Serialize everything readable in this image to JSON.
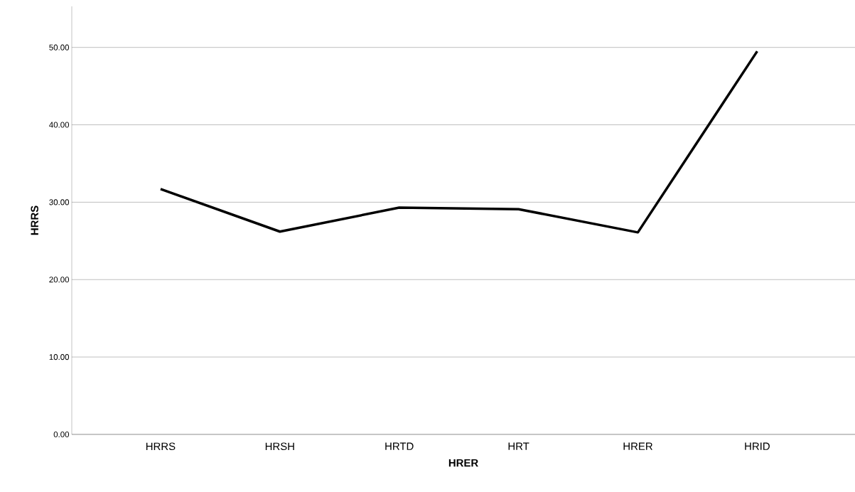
{
  "chart_data": {
    "type": "line",
    "xlabel": "HRER",
    "ylabel": "HRRS",
    "categories": [
      "HRRS",
      "HRSH",
      "HRTD",
      "HRT",
      "HRER",
      "HRID"
    ],
    "values": [
      31.7,
      26.2,
      29.3,
      29.1,
      26.1,
      49.5
    ],
    "color": "#000000",
    "ylim": [
      0,
      55.3
    ],
    "yticks": [
      {
        "value": 0,
        "label": "0.00"
      },
      {
        "value": 10,
        "label": "10.00"
      },
      {
        "value": 20,
        "label": "20.00"
      },
      {
        "value": 30,
        "label": "30.00"
      },
      {
        "value": 40,
        "label": "40.00"
      },
      {
        "value": 50,
        "label": "50.00"
      }
    ],
    "grid": "y",
    "marker": "none",
    "line_style": "solid"
  }
}
